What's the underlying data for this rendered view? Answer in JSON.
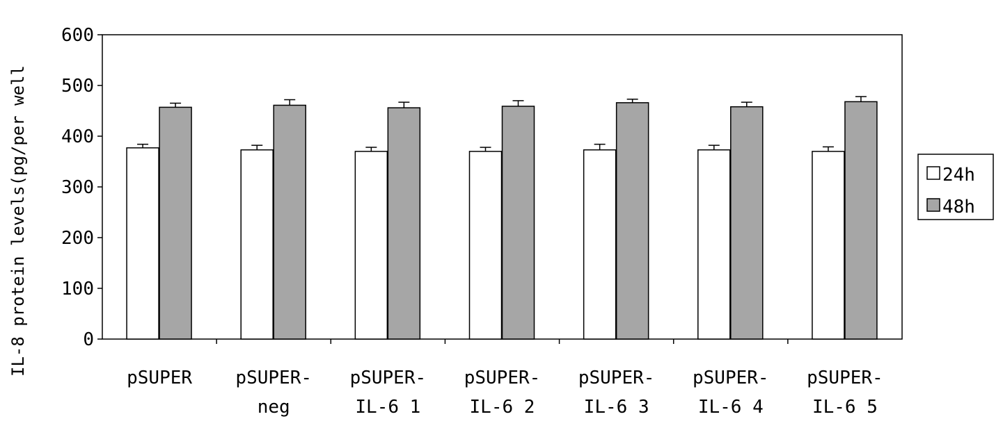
{
  "chart_data": {
    "type": "bar",
    "categories": [
      [
        "pSUPER"
      ],
      [
        "pSUPER-",
        "neg"
      ],
      [
        "pSUPER-",
        "IL-6 1"
      ],
      [
        "pSUPER-",
        "IL-6 2"
      ],
      [
        "pSUPER-",
        "IL-6 3"
      ],
      [
        "pSUPER-",
        "IL-6 4"
      ],
      [
        "pSUPER-",
        "IL-6 5"
      ]
    ],
    "series": [
      {
        "name": "24h",
        "values": [
          377,
          373,
          370,
          370,
          373,
          373,
          370
        ],
        "errors": [
          7,
          9,
          8,
          8,
          11,
          9,
          9
        ],
        "color": "#ffffff"
      },
      {
        "name": "48h",
        "values": [
          457,
          461,
          456,
          459,
          466,
          458,
          468
        ],
        "errors": [
          8,
          11,
          11,
          11,
          7,
          9,
          10
        ],
        "color": "#a6a6a6"
      }
    ],
    "ylabel": "IL-8 protein levels(pg/per well",
    "ylim": [
      0,
      600
    ],
    "yticks": [
      0,
      100,
      200,
      300,
      400,
      500,
      600
    ],
    "grid": false,
    "legend_position": "right"
  }
}
